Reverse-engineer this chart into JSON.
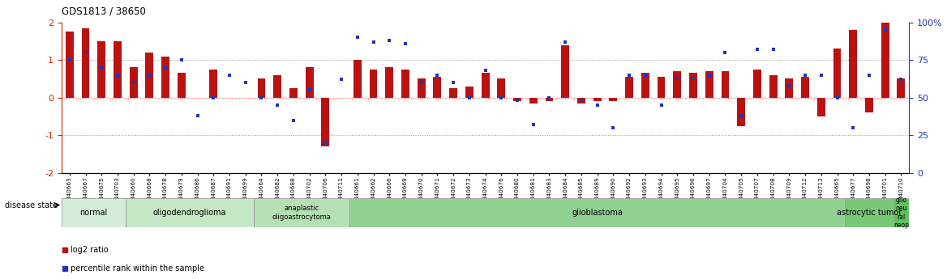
{
  "title": "GDS1813 / 38650",
  "samples": [
    "GSM40663",
    "GSM40667",
    "GSM40675",
    "GSM40703",
    "GSM40660",
    "GSM40668",
    "GSM40678",
    "GSM40679",
    "GSM40686",
    "GSM40687",
    "GSM40691",
    "GSM40699",
    "GSM40664",
    "GSM40682",
    "GSM40688",
    "GSM40702",
    "GSM40706",
    "GSM40711",
    "GSM40661",
    "GSM40662",
    "GSM40666",
    "GSM40669",
    "GSM40670",
    "GSM40671",
    "GSM40672",
    "GSM40673",
    "GSM40674",
    "GSM40676",
    "GSM40680",
    "GSM40681",
    "GSM40683",
    "GSM40684",
    "GSM40685",
    "GSM40689",
    "GSM40690",
    "GSM40692",
    "GSM40693",
    "GSM40694",
    "GSM40695",
    "GSM40696",
    "GSM40697",
    "GSM40704",
    "GSM40705",
    "GSM40707",
    "GSM40708",
    "GSM40709",
    "GSM40712",
    "GSM40713",
    "GSM40665",
    "GSM40677",
    "GSM40698",
    "GSM40701",
    "GSM40710"
  ],
  "log2_ratio": [
    1.75,
    1.85,
    1.5,
    1.5,
    0.8,
    1.2,
    1.1,
    0.65,
    0.0,
    0.75,
    0.0,
    0.0,
    0.5,
    0.6,
    0.25,
    0.8,
    -1.3,
    0.0,
    1.0,
    0.75,
    0.8,
    0.75,
    0.5,
    0.55,
    0.25,
    0.3,
    0.65,
    0.5,
    -0.1,
    -0.15,
    -0.1,
    1.4,
    -0.15,
    -0.1,
    -0.1,
    0.55,
    0.65,
    0.55,
    0.7,
    0.65,
    0.7,
    0.7,
    -0.75,
    0.75,
    0.6,
    0.5,
    0.55,
    -0.5,
    1.3,
    1.8,
    -0.4,
    2.0,
    0.5
  ],
  "percentile": [
    75,
    80,
    70,
    65,
    60,
    65,
    70,
    75,
    38,
    50,
    65,
    60,
    50,
    45,
    35,
    55,
    20,
    62,
    90,
    87,
    88,
    86,
    60,
    65,
    60,
    50,
    68,
    50,
    48,
    32,
    50,
    87,
    48,
    45,
    30,
    65,
    65,
    45,
    63,
    63,
    65,
    80,
    38,
    82,
    82,
    58,
    65,
    65,
    50,
    30,
    65,
    95,
    62
  ],
  "disease_groups": [
    {
      "label": "normal",
      "start": 0,
      "end": 4,
      "color": "#d4edda"
    },
    {
      "label": "oligodendroglioma",
      "start": 4,
      "end": 12,
      "color": "#c4e8c4"
    },
    {
      "label": "anaplastic\noligoastrocytoma",
      "start": 12,
      "end": 18,
      "color": "#b4e0b4"
    },
    {
      "label": "glioblastoma",
      "start": 18,
      "end": 49,
      "color": "#90d090"
    },
    {
      "label": "astrocytic tumor",
      "start": 49,
      "end": 52,
      "color": "#78c878"
    },
    {
      "label": "glio\nneu\nral\nneop",
      "start": 52,
      "end": 53,
      "color": "#60c060"
    }
  ],
  "bar_color_red": "#bb1111",
  "bar_color_blue": "#2233bb",
  "left_axis_color": "#cc2200",
  "right_axis_color": "#2233bb",
  "ylim_left": [
    -2.0,
    2.0
  ],
  "ylim_right": [
    0,
    100
  ],
  "yticks_left": [
    -2,
    -1,
    0,
    1,
    2
  ],
  "yticks_right": [
    0,
    25,
    50,
    75,
    100
  ],
  "right_tick_labels": [
    "0",
    "25",
    "50",
    "75",
    "100%"
  ],
  "bg_color": "#ffffff"
}
